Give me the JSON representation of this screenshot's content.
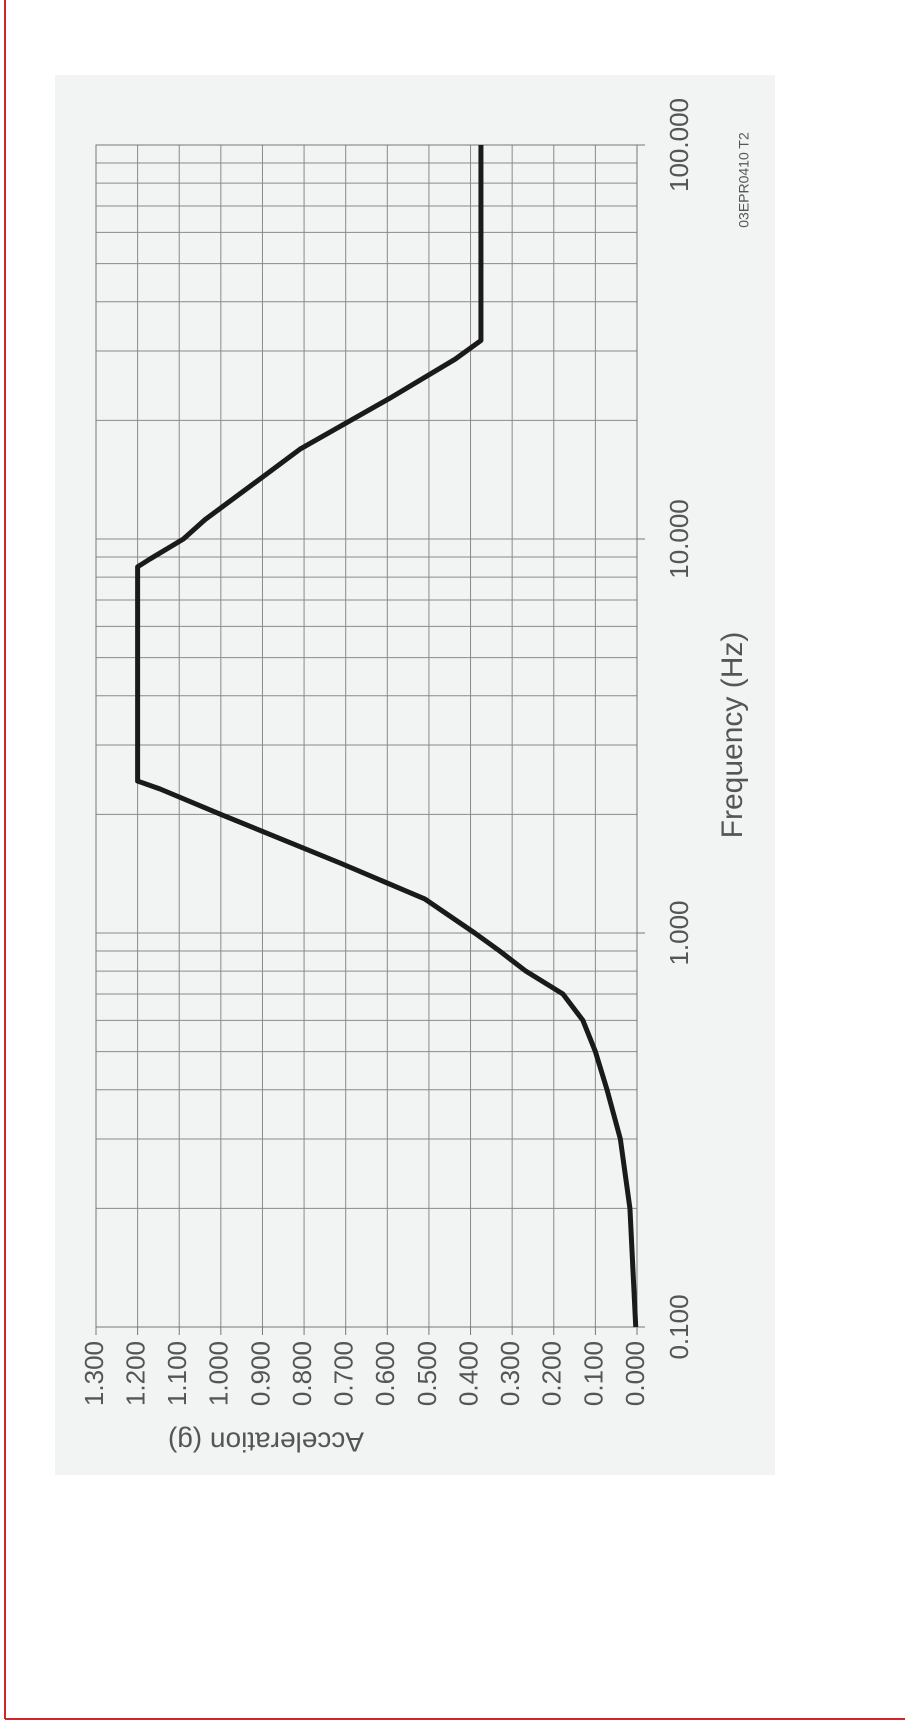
{
  "chart_data": {
    "type": "line",
    "x_label": "Frequency (Hz)",
    "y_label": "Acceleration (g)",
    "annotation": "03EPR0410 T2",
    "x_log": true,
    "grid": true,
    "minor_grid": true,
    "xlim": [
      0.1,
      100
    ],
    "xticks": [
      {
        "value": 0.1,
        "label": "0.100"
      },
      {
        "value": 1,
        "label": "1.000"
      },
      {
        "value": 10,
        "label": "10.000"
      },
      {
        "value": 100,
        "label": "100.000"
      }
    ],
    "ylim": [
      0,
      1.3
    ],
    "yticks": [
      {
        "value": 0,
        "label": "0.000"
      },
      {
        "value": 0.1,
        "label": "0.100"
      },
      {
        "value": 0.2,
        "label": "0.200"
      },
      {
        "value": 0.3,
        "label": "0.300"
      },
      {
        "value": 0.4,
        "label": "0.400"
      },
      {
        "value": 0.5,
        "label": "0.500"
      },
      {
        "value": 0.6,
        "label": "0.600"
      },
      {
        "value": 0.7,
        "label": "0.700"
      },
      {
        "value": 0.8,
        "label": "0.800"
      },
      {
        "value": 0.9,
        "label": "0.900"
      },
      {
        "value": 1,
        "label": "1.000"
      },
      {
        "value": 1.1,
        "label": "1.100"
      },
      {
        "value": 1.2,
        "label": "1.200"
      },
      {
        "value": 1.3,
        "label": "1.300"
      }
    ],
    "x": [
      0.1,
      0.2,
      0.3,
      0.4,
      0.5,
      0.6,
      0.7,
      0.8,
      0.9,
      1.0,
      1.22,
      1.5,
      2.0,
      2.32,
      2.43,
      8.5,
      8.9,
      10,
      11.2,
      14.2,
      16.9,
      22.7,
      28.6,
      31.9,
      100
    ],
    "series": [
      {
        "color": "#1a1a1a",
        "values": [
          0.003,
          0.017,
          0.04,
          0.072,
          0.1,
          0.13,
          0.178,
          0.267,
          0.33,
          0.39,
          0.51,
          0.71,
          1.0,
          1.146,
          1.2,
          1.2,
          1.17,
          1.09,
          1.038,
          0.906,
          0.81,
          0.596,
          0.437,
          0.375,
          0.375
        ]
      }
    ]
  }
}
